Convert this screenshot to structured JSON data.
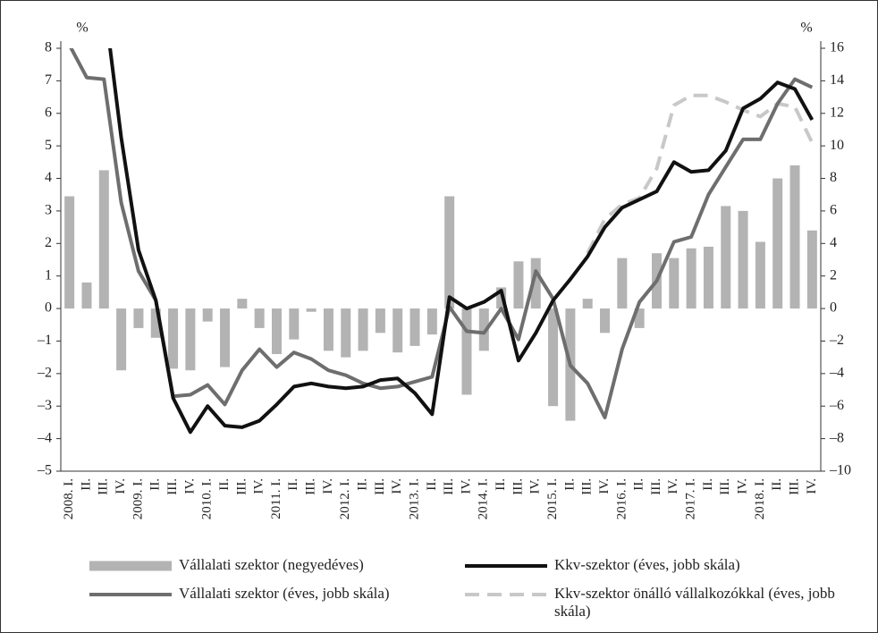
{
  "chart_data": {
    "type": "bar",
    "y_label": "%",
    "y2_label": "%",
    "categories": [
      "2008. I.",
      "II.",
      "III.",
      "IV.",
      "2009. I.",
      "II.",
      "III.",
      "IV.",
      "2010. I.",
      "II.",
      "III.",
      "IV.",
      "2011. I.",
      "II.",
      "III.",
      "IV.",
      "2012. I.",
      "II.",
      "III.",
      "IV.",
      "2013. I.",
      "II.",
      "III.",
      "IV.",
      "2014. I.",
      "II.",
      "III.",
      "IV.",
      "2015. I.",
      "II.",
      "III.",
      "IV.",
      "2016. I.",
      "II.",
      "III.",
      "IV.",
      "2017. I.",
      "II.",
      "III.",
      "IV.",
      "2018. I.",
      "II.",
      "III.",
      "IV."
    ],
    "series": [
      {
        "name": "Vállalati szektor (negyedéves)",
        "type": "bar",
        "color": "#b3b3b3",
        "values": [
          3.45,
          0.8,
          4.25,
          -1.9,
          -0.6,
          -0.9,
          -1.85,
          -1.9,
          -0.4,
          -1.8,
          0.3,
          -0.6,
          -1.4,
          -0.95,
          -0.1,
          -1.3,
          -1.5,
          -1.3,
          -0.75,
          -1.35,
          -1.15,
          -0.8,
          3.45,
          -2.65,
          -1.3,
          0.65,
          1.45,
          1.55,
          -3.0,
          -3.45,
          0.3,
          -0.75,
          1.55,
          -0.6,
          1.7,
          1.55,
          1.85,
          1.9,
          3.15,
          3.0,
          2.05,
          4.0,
          4.4,
          2.4
        ]
      },
      {
        "name": "Kkv-szektor (éves, jobb skála)",
        "type": "line",
        "axis": "y2",
        "color": "#111111",
        "values": [
          null,
          null,
          19,
          10.5,
          3.6,
          0.5,
          -5.5,
          -7.6,
          -6.0,
          -7.2,
          -7.3,
          -6.9,
          -5.9,
          -4.8,
          -4.6,
          -4.8,
          -4.9,
          -4.8,
          -4.4,
          -4.3,
          -5.2,
          -6.5,
          0.7,
          0.0,
          0.4,
          1.1,
          -3.2,
          -1.5,
          0.5,
          1.8,
          3.2,
          5.0,
          6.2,
          6.7,
          7.2,
          9.0,
          8.4,
          8.5,
          9.7,
          12.3,
          12.9,
          13.9,
          13.5,
          11.6
        ]
      },
      {
        "name": "Vállalati szektor (éves, jobb skála)",
        "type": "line",
        "axis": "y2",
        "color": "#6e6e6e",
        "values": [
          16.2,
          14.2,
          14.1,
          6.5,
          2.3,
          0.5,
          -5.4,
          -5.3,
          -4.7,
          -5.9,
          -3.8,
          -2.5,
          -3.6,
          -2.7,
          -3.1,
          -3.8,
          -4.1,
          -4.6,
          -4.9,
          -4.8,
          -4.5,
          -4.2,
          0.1,
          -1.4,
          -1.5,
          0.0,
          -1.9,
          2.3,
          0.6,
          -3.5,
          -4.6,
          -6.7,
          -2.5,
          0.4,
          1.7,
          4.1,
          4.4,
          7.0,
          8.7,
          10.4,
          10.4,
          12.6,
          14.1,
          13.6
        ]
      },
      {
        "name": "Kkv-szektor önálló vállalkozókkal (éves, jobb skála)",
        "type": "line",
        "axis": "y2",
        "color": "#c8c8c8",
        "dashed": true,
        "values": [
          null,
          null,
          null,
          null,
          null,
          null,
          null,
          null,
          null,
          null,
          null,
          null,
          null,
          null,
          null,
          null,
          null,
          null,
          null,
          null,
          null,
          null,
          null,
          null,
          null,
          null,
          null,
          null,
          null,
          null,
          3.4,
          5.5,
          6.4,
          6.8,
          8.6,
          12.5,
          13.1,
          13.1,
          12.7,
          12.2,
          11.8,
          12.6,
          12.4,
          10.2
        ]
      }
    ],
    "ylim": [
      -5,
      8
    ],
    "yticks": [
      {
        "value": -5,
        "label": "–5"
      },
      {
        "value": -4,
        "label": "–4"
      },
      {
        "value": -3,
        "label": "–3"
      },
      {
        "value": -2,
        "label": "–2"
      },
      {
        "value": -1,
        "label": "–1"
      },
      0,
      1,
      2,
      3,
      4,
      5,
      6,
      7,
      8
    ],
    "y2lim": [
      -10,
      16
    ],
    "y2ticks": [
      {
        "value": -10,
        "label": "–10"
      },
      {
        "value": -8,
        "label": "–8"
      },
      {
        "value": -6,
        "label": "–6"
      },
      {
        "value": -4,
        "label": "–4"
      },
      {
        "value": -2,
        "label": "–2"
      },
      0,
      2,
      4,
      6,
      8,
      10,
      12,
      14,
      16
    ]
  }
}
